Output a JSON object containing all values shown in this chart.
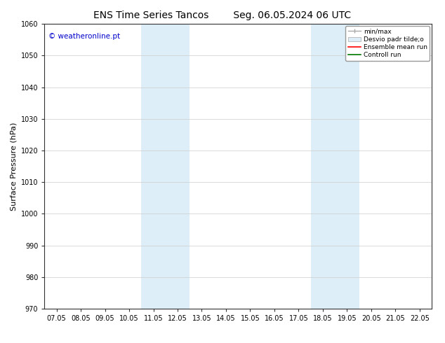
{
  "title_left": "ENS Time Series Tancos",
  "title_right": "Seg. 06.05.2024 06 UTC",
  "ylabel": "Surface Pressure (hPa)",
  "ylim": [
    970,
    1060
  ],
  "yticks": [
    970,
    980,
    990,
    1000,
    1010,
    1020,
    1030,
    1040,
    1050,
    1060
  ],
  "xticks": [
    "07.05",
    "08.05",
    "09.05",
    "10.05",
    "11.05",
    "12.05",
    "13.05",
    "14.05",
    "15.05",
    "16.05",
    "17.05",
    "18.05",
    "19.05",
    "20.05",
    "21.05",
    "22.05"
  ],
  "xtick_positions": [
    0,
    1,
    2,
    3,
    4,
    5,
    6,
    7,
    8,
    9,
    10,
    11,
    12,
    13,
    14,
    15
  ],
  "shaded_regions": [
    {
      "x_start": 3.5,
      "x_end": 5.5,
      "color": "#ddeef8"
    },
    {
      "x_start": 10.5,
      "x_end": 12.5,
      "color": "#ddeef8"
    }
  ],
  "legend_label_minmax": "min/max",
  "legend_label_desvio": "Desvio padr tilde;o",
  "legend_label_ensemble": "Ensemble mean run",
  "legend_label_control": "Controll run",
  "legend_color_minmax": "#aaaaaa",
  "legend_color_desvio_face": "#ddeef8",
  "legend_color_desvio_edge": "#aaaaaa",
  "legend_color_ensemble": "#ff0000",
  "legend_color_control": "#007700",
  "watermark": "© weatheronline.pt",
  "watermark_color": "#0000cc",
  "bg_color": "#ffffff",
  "plot_bg_color": "#ffffff",
  "grid_color": "#cccccc",
  "title_fontsize": 10,
  "tick_fontsize": 7,
  "ylabel_fontsize": 8,
  "legend_fontsize": 6.5
}
